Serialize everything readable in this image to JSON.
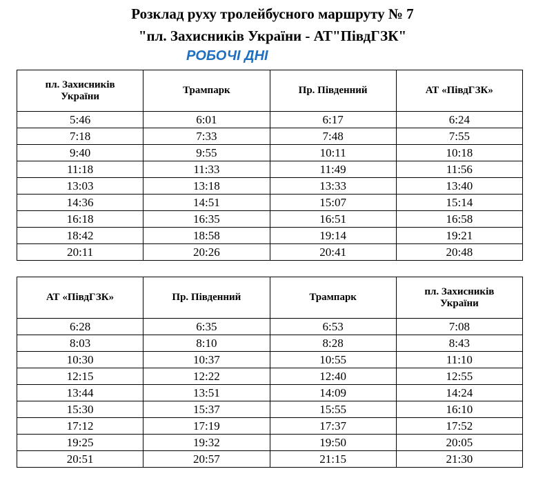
{
  "header": {
    "title_line1": "Розклад руху тролейбусного маршруту № 7",
    "title_line2": "\"пл. Захисників України - АТ\"ПівдГЗК\"",
    "subtitle": "РОБОЧІ ДНІ"
  },
  "tables": [
    {
      "columns": [
        "пл. Захисників України",
        "Трампарк",
        "Пр. Південний",
        "АТ «ПівдГЗК»"
      ],
      "rows": [
        [
          "5:46",
          "6:01",
          "6:17",
          "6:24"
        ],
        [
          "7:18",
          "7:33",
          "7:48",
          "7:55"
        ],
        [
          "9:40",
          "9:55",
          "10:11",
          "10:18"
        ],
        [
          "11:18",
          "11:33",
          "11:49",
          "11:56"
        ],
        [
          "13:03",
          "13:18",
          "13:33",
          "13:40"
        ],
        [
          "14:36",
          "14:51",
          "15:07",
          "15:14"
        ],
        [
          "16:18",
          "16:35",
          "16:51",
          "16:58"
        ],
        [
          "18:42",
          "18:58",
          "19:14",
          "19:21"
        ],
        [
          "20:11",
          "20:26",
          "20:41",
          "20:48"
        ]
      ]
    },
    {
      "columns": [
        "АТ «ПівдГЗК»",
        "Пр. Південний",
        "Трампарк",
        "пл. Захисників України"
      ],
      "rows": [
        [
          "6:28",
          "6:35",
          "6:53",
          "7:08"
        ],
        [
          "8:03",
          "8:10",
          "8:28",
          "8:43"
        ],
        [
          "10:30",
          "10:37",
          "10:55",
          "11:10"
        ],
        [
          "12:15",
          "12:22",
          "12:40",
          "12:55"
        ],
        [
          "13:44",
          "13:51",
          "14:09",
          "14:24"
        ],
        [
          "15:30",
          "15:37",
          "15:55",
          "16:10"
        ],
        [
          "17:12",
          "17:19",
          "17:37",
          "17:52"
        ],
        [
          "19:25",
          "19:32",
          "19:50",
          "20:05"
        ],
        [
          "20:51",
          "20:57",
          "21:15",
          "21:30"
        ]
      ]
    }
  ]
}
